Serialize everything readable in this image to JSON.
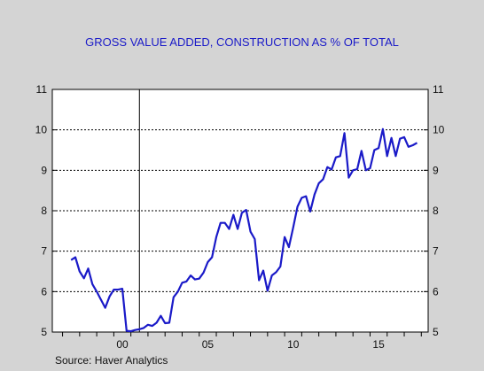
{
  "chart_data": {
    "type": "line",
    "title": "GROSS VALUE ADDED, CONSTRUCTION AS % OF TOTAL",
    "source": "Source: Haver Analytics",
    "xlabel": "",
    "ylabel": "",
    "ylim": [
      5,
      11
    ],
    "xlim": [
      1996.4,
      2018.4
    ],
    "y_ticks": [
      "5",
      "6",
      "7",
      "8",
      "9",
      "10",
      "11"
    ],
    "x_tick_labels": [
      {
        "year": 2000,
        "label": "00"
      },
      {
        "year": 2005,
        "label": "05"
      },
      {
        "year": 2010,
        "label": "10"
      },
      {
        "year": 2015,
        "label": "15"
      }
    ],
    "x_minor_ticks": [
      1997,
      1998,
      1999,
      2000,
      2001,
      2002,
      2003,
      2004,
      2005,
      2006,
      2007,
      2008,
      2009,
      2010,
      2011,
      2012,
      2013,
      2014,
      2015,
      2016,
      2017,
      2018
    ],
    "dotted_grid_y": [
      6,
      7,
      8,
      9,
      10
    ],
    "vertical_line_x": 2001.5,
    "line_color": "#1a1ac8",
    "series": [
      {
        "x": [
          1997.5,
          1997.75,
          1998.0,
          1998.25,
          1998.5,
          1998.75,
          1999.0,
          1999.25,
          1999.5,
          1999.75,
          2000.0,
          2000.25,
          2000.5,
          2000.75,
          2001.0,
          2001.25,
          2001.5,
          2001.75,
          2002.0,
          2002.25,
          2002.5,
          2002.75,
          2003.0,
          2003.25,
          2003.5,
          2003.75,
          2004.0,
          2004.25,
          2004.5,
          2004.75,
          2005.0,
          2005.25,
          2005.5,
          2005.75,
          2006.0,
          2006.25,
          2006.5,
          2006.75,
          2007.0,
          2007.25,
          2007.5,
          2007.75,
          2008.0,
          2008.25,
          2008.5,
          2008.75,
          2009.0,
          2009.25,
          2009.5,
          2009.75,
          2010.0,
          2010.25,
          2010.5,
          2010.75,
          2011.0,
          2011.25,
          2011.5,
          2011.75,
          2012.0,
          2012.25,
          2012.5,
          2012.75,
          2013.0,
          2013.25,
          2013.5,
          2013.75,
          2014.0,
          2014.25,
          2014.5,
          2014.75,
          2015.0,
          2015.25,
          2015.5,
          2015.75,
          2016.0,
          2016.25,
          2016.5,
          2016.75,
          2017.0,
          2017.25,
          2017.5,
          2017.75
        ],
        "values": [
          6.78,
          6.85,
          6.5,
          6.33,
          6.57,
          6.18,
          6.0,
          5.8,
          5.6,
          5.88,
          6.05,
          6.05,
          6.07,
          5.03,
          5.02,
          5.05,
          5.07,
          5.1,
          5.18,
          5.15,
          5.23,
          5.4,
          5.22,
          5.23,
          5.86,
          6.0,
          6.22,
          6.25,
          6.4,
          6.3,
          6.32,
          6.47,
          6.73,
          6.85,
          7.35,
          7.7,
          7.7,
          7.55,
          7.9,
          7.55,
          7.95,
          8.02,
          7.48,
          7.3,
          6.28,
          6.52,
          6.02,
          6.4,
          6.48,
          6.62,
          7.35,
          7.1,
          7.58,
          8.1,
          8.32,
          8.36,
          7.98,
          8.4,
          8.68,
          8.78,
          9.08,
          9.02,
          9.32,
          9.35,
          9.92,
          8.82,
          9.0,
          9.03,
          9.48,
          9.0,
          9.05,
          9.5,
          9.55,
          10.02,
          9.35,
          9.8,
          9.35,
          9.78,
          9.82,
          9.58,
          9.62,
          9.68
        ]
      }
    ]
  }
}
